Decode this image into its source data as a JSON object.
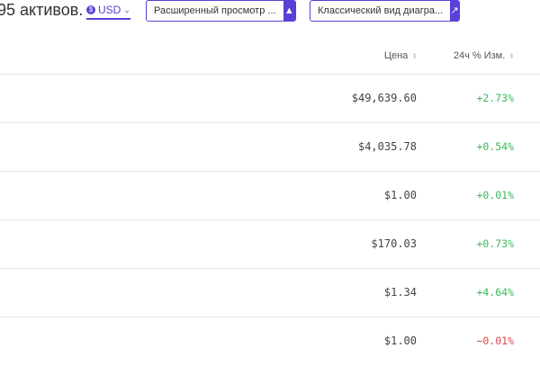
{
  "header": {
    "asset_count": "95 активов.",
    "currency": "USD",
    "currency_icon": "dollar-coin-icon",
    "view_select": "Расширенный просмотр ...",
    "chart_select": "Классический вид диагра..."
  },
  "columns": {
    "price": "Цена",
    "change": "24ч % Изм."
  },
  "colors": {
    "accent": "#5b3fd6",
    "positive": "#3cb95a",
    "negative": "#e04848"
  },
  "rows": [
    {
      "price": "$49,639.60",
      "change": "+2.73%",
      "dir": "up"
    },
    {
      "price": "$4,035.78",
      "change": "+0.54%",
      "dir": "up"
    },
    {
      "price": "$1.00",
      "change": "+0.01%",
      "dir": "up"
    },
    {
      "price": "$170.03",
      "change": "+0.73%",
      "dir": "up"
    },
    {
      "price": "$1.34",
      "change": "+4.64%",
      "dir": "up"
    },
    {
      "price": "$1.00",
      "change": "−0.01%",
      "dir": "down"
    }
  ]
}
